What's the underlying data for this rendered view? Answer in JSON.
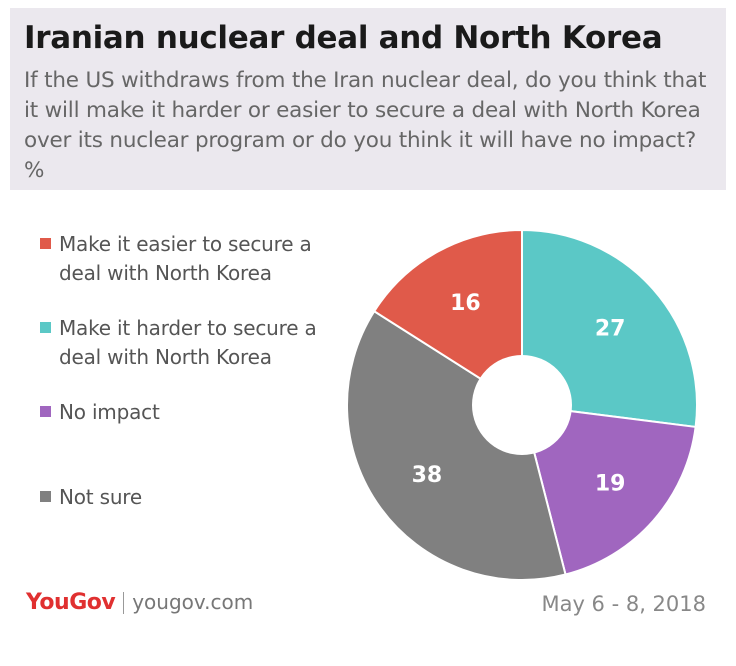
{
  "header": {
    "title": "Iranian nuclear deal and North Korea",
    "subtitle": "If the US withdraws from the Iran nuclear deal, do you think that it will make it harder or easier to secure a deal with North Korea over its nuclear program or do you think it will have no impact? %"
  },
  "legend": [
    {
      "label": "Make it easier to secure a deal with North Korea",
      "color": "#e05a4a"
    },
    {
      "label": "Make it harder to secure a deal with North Korea",
      "color": "#5bc8c6"
    },
    {
      "label": "No impact",
      "color": "#a066bf"
    },
    {
      "label": "Not sure",
      "color": "#808080"
    }
  ],
  "chart_data": {
    "type": "pie",
    "donut": true,
    "slices": [
      {
        "label": "Make it harder to secure a deal with North Korea",
        "value": 27,
        "color": "#5bc8c6"
      },
      {
        "label": "No impact",
        "value": 19,
        "color": "#a066bf"
      },
      {
        "label": "Not sure",
        "value": 38,
        "color": "#808080"
      },
      {
        "label": "Make it easier to secure a deal with North Korea",
        "value": 16,
        "color": "#e05a4a"
      }
    ]
  },
  "footer": {
    "brand": "YouGov",
    "url": "yougov.com",
    "date": "May 6 - 8, 2018"
  }
}
